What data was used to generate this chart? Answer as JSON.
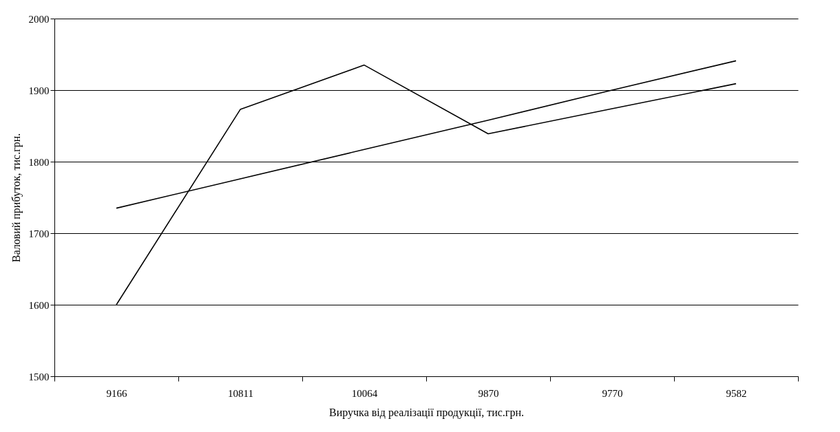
{
  "chart_data": {
    "type": "line",
    "xlabel": "Виручка від реалізації продукції, тис.грн.",
    "ylabel": "Валовий прибуток, тис.грн.",
    "categories": [
      "9166",
      "10811",
      "10064",
      "9870",
      "9770",
      "9582"
    ],
    "series": [
      {
        "color": "#000000",
        "values": [
          1600,
          1873,
          1935,
          1839,
          1874,
          1909
        ]
      },
      {
        "type": "line",
        "color": "#000000",
        "values": [
          1735,
          1776,
          1817,
          1858,
          1900,
          1941
        ]
      }
    ],
    "ylim": [
      1500,
      2000
    ],
    "yticks": [
      1500,
      1600,
      1700,
      1800,
      1900,
      2000
    ],
    "grid": "y",
    "marker": "none",
    "line_style": "solid"
  }
}
